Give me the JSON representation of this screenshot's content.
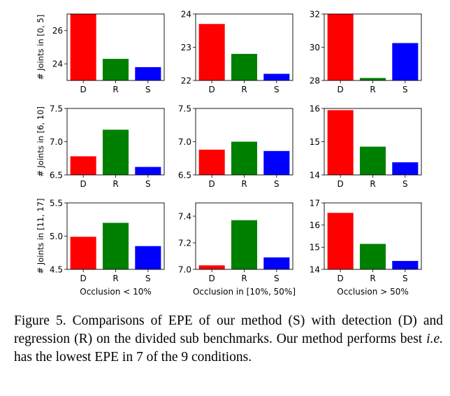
{
  "figure": {
    "figure_label": "Figure 5."
  },
  "caption": {
    "part1": "Figure 5. Comparisons of EPE of our method (S) with detection (D) and regression (R) on the divided sub benchmarks. Our method performs best ",
    "emphasis": "i.e.",
    "part2": " has the lowest EPE in 7 of the 9 conditions."
  },
  "colors": {
    "D": "#ff0000",
    "R": "#008000",
    "S": "#0000ff"
  },
  "chart_data": [
    {
      "type": "bar",
      "row": 0,
      "col": 0,
      "categories": [
        "D",
        "R",
        "S"
      ],
      "values": [
        27.0,
        24.3,
        23.8
      ],
      "ylim": [
        23.0,
        27.0
      ],
      "yticks": [
        24,
        26
      ],
      "ytick_labels": [
        "24",
        "26"
      ],
      "ylabel": "# Joints in [0, 5]",
      "xlabel": ""
    },
    {
      "type": "bar",
      "row": 0,
      "col": 1,
      "categories": [
        "D",
        "R",
        "S"
      ],
      "values": [
        23.7,
        22.8,
        22.2
      ],
      "ylim": [
        22.0,
        24.0
      ],
      "yticks": [
        22,
        23,
        24
      ],
      "ytick_labels": [
        "22",
        "23",
        "24"
      ],
      "ylabel": "",
      "xlabel": ""
    },
    {
      "type": "bar",
      "row": 0,
      "col": 2,
      "categories": [
        "D",
        "R",
        "S"
      ],
      "values": [
        32.0,
        28.15,
        30.25
      ],
      "ylim": [
        28.0,
        32.0
      ],
      "yticks": [
        28,
        30,
        32
      ],
      "ytick_labels": [
        "28",
        "30",
        "32"
      ],
      "ylabel": "",
      "xlabel": ""
    },
    {
      "type": "bar",
      "row": 1,
      "col": 0,
      "categories": [
        "D",
        "R",
        "S"
      ],
      "values": [
        6.78,
        7.18,
        6.62
      ],
      "ylim": [
        6.5,
        7.5
      ],
      "yticks": [
        6.5,
        7.0,
        7.5
      ],
      "ytick_labels": [
        "6.5",
        "7.0",
        "7.5"
      ],
      "ylabel": "# Joints in [6, 10]",
      "xlabel": ""
    },
    {
      "type": "bar",
      "row": 1,
      "col": 1,
      "categories": [
        "D",
        "R",
        "S"
      ],
      "values": [
        6.88,
        7.0,
        6.86
      ],
      "ylim": [
        6.5,
        7.5
      ],
      "yticks": [
        6.5,
        7.0,
        7.5
      ],
      "ytick_labels": [
        "6.5",
        "7.0",
        "7.5"
      ],
      "ylabel": "",
      "xlabel": ""
    },
    {
      "type": "bar",
      "row": 1,
      "col": 2,
      "categories": [
        "D",
        "R",
        "S"
      ],
      "values": [
        15.95,
        14.85,
        14.38
      ],
      "ylim": [
        14.0,
        16.0
      ],
      "yticks": [
        14,
        15,
        16
      ],
      "ytick_labels": [
        "14",
        "15",
        "16"
      ],
      "ylabel": "",
      "xlabel": ""
    },
    {
      "type": "bar",
      "row": 2,
      "col": 0,
      "categories": [
        "D",
        "R",
        "S"
      ],
      "values": [
        4.99,
        5.2,
        4.85
      ],
      "ylim": [
        4.5,
        5.5
      ],
      "yticks": [
        4.5,
        5.0,
        5.5
      ],
      "ytick_labels": [
        "4.5",
        "5.0",
        "5.5"
      ],
      "ylabel": "# Joints in [11, 17]",
      "xlabel": "Occlusion < 10%"
    },
    {
      "type": "bar",
      "row": 2,
      "col": 1,
      "categories": [
        "D",
        "R",
        "S"
      ],
      "values": [
        7.03,
        7.37,
        7.09
      ],
      "ylim": [
        7.0,
        7.5
      ],
      "yticks": [
        7.0,
        7.2,
        7.4
      ],
      "ytick_labels": [
        "7.0",
        "7.2",
        "7.4"
      ],
      "ylabel": "",
      "xlabel": "Occlusion in [10%, 50%]"
    },
    {
      "type": "bar",
      "row": 2,
      "col": 2,
      "categories": [
        "D",
        "R",
        "S"
      ],
      "values": [
        16.55,
        15.15,
        14.38
      ],
      "ylim": [
        14.0,
        17.0
      ],
      "yticks": [
        14,
        15,
        16,
        17
      ],
      "ytick_labels": [
        "14",
        "15",
        "16",
        "17"
      ],
      "ylabel": "",
      "xlabel": "Occlusion > 50%"
    }
  ]
}
